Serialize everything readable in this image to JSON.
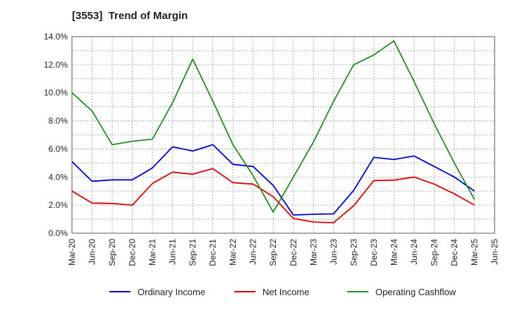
{
  "chart_data": {
    "type": "line",
    "title": "[3553]  Trend of Margin",
    "xlabel": "",
    "ylabel": "",
    "ylim": [
      0,
      14
    ],
    "y_ticks": [
      "0.0%",
      "2.0%",
      "4.0%",
      "6.0%",
      "8.0%",
      "10.0%",
      "12.0%",
      "14.0%"
    ],
    "x": [
      "Mar-20",
      "Jun-20",
      "Sep-20",
      "Dec-20",
      "Mar-21",
      "Jun-21",
      "Sep-21",
      "Dec-21",
      "Mar-22",
      "Jun-22",
      "Sep-22",
      "Dec-22",
      "Mar-23",
      "Jun-23",
      "Sep-23",
      "Dec-23",
      "Mar-24",
      "Jun-24",
      "Sep-24",
      "Dec-24",
      "Mar-25",
      "Jun-25"
    ],
    "grid": true,
    "legend_position": "bottom",
    "series": [
      {
        "name": "Ordinary Income",
        "color": "#0000cc",
        "values": [
          5.1,
          3.7,
          3.8,
          3.8,
          4.65,
          6.15,
          5.85,
          6.3,
          4.9,
          4.75,
          3.4,
          1.3,
          1.35,
          1.38,
          3.05,
          5.4,
          5.25,
          5.5,
          4.75,
          4.0,
          3.0,
          null
        ]
      },
      {
        "name": "Net Income",
        "color": "#dd0000",
        "values": [
          3.0,
          2.15,
          2.12,
          2.0,
          3.55,
          4.35,
          4.2,
          4.6,
          3.6,
          3.5,
          2.6,
          1.05,
          0.8,
          0.75,
          1.95,
          3.75,
          3.78,
          4.0,
          3.5,
          2.8,
          2.0,
          null
        ]
      },
      {
        "name": "Operating Cashflow",
        "color": "#228b22",
        "values": [
          10.0,
          8.7,
          6.3,
          6.55,
          6.7,
          9.3,
          12.4,
          9.4,
          6.3,
          4.1,
          1.5,
          4.0,
          6.5,
          9.4,
          12.0,
          12.7,
          13.7,
          10.8,
          7.8,
          5.0,
          2.4,
          null
        ]
      }
    ]
  }
}
